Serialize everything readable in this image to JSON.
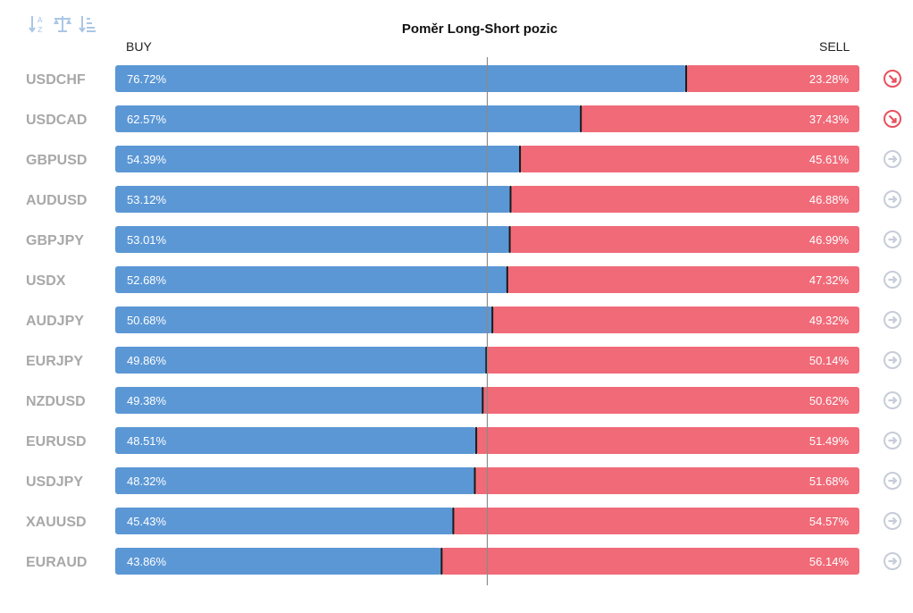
{
  "title": "Poměr Long-Short pozic",
  "headers": {
    "buy": "BUY",
    "sell": "SELL"
  },
  "toolbar": [
    {
      "name": "sort-alpha-icon"
    },
    {
      "name": "balance-scale-icon"
    },
    {
      "name": "sort-amount-icon"
    }
  ],
  "colors": {
    "buy": "#5b97d5",
    "sell": "#f06a78",
    "down_arrow": "#e8505e",
    "neutral_arrow": "#c7ccd8"
  },
  "chart_data": {
    "type": "bar",
    "stacked": true,
    "orientation": "horizontal",
    "categories": [
      "USDCHF",
      "USDCAD",
      "GBPUSD",
      "AUDUSD",
      "GBPJPY",
      "USDX",
      "AUDJPY",
      "EURJPY",
      "NZDUSD",
      "EURUSD",
      "USDJPY",
      "XAUUSD",
      "EURAUD"
    ],
    "series": [
      {
        "name": "BUY",
        "values": [
          76.72,
          62.57,
          54.39,
          53.12,
          53.01,
          52.68,
          50.68,
          49.86,
          49.38,
          48.51,
          48.32,
          45.43,
          43.86
        ]
      },
      {
        "name": "SELL",
        "values": [
          23.28,
          37.43,
          45.61,
          46.88,
          46.99,
          47.32,
          49.32,
          50.14,
          50.62,
          51.49,
          51.68,
          54.57,
          56.14
        ]
      }
    ],
    "labels_buy": [
      "76.72%",
      "62.57%",
      "54.39%",
      "53.12%",
      "53.01%",
      "52.68%",
      "50.68%",
      "49.86%",
      "49.38%",
      "48.51%",
      "48.32%",
      "45.43%",
      "43.86%"
    ],
    "labels_sell": [
      "23.28%",
      "37.43%",
      "45.61%",
      "46.88%",
      "46.99%",
      "47.32%",
      "49.32%",
      "50.14%",
      "50.62%",
      "51.49%",
      "51.68%",
      "54.57%",
      "56.14%"
    ],
    "trend_icons": [
      "down-right-arrow-icon",
      "down-right-arrow-icon",
      "right-arrow-icon",
      "right-arrow-icon",
      "right-arrow-icon",
      "right-arrow-icon",
      "right-arrow-icon",
      "right-arrow-icon",
      "right-arrow-icon",
      "right-arrow-icon",
      "right-arrow-icon",
      "right-arrow-icon",
      "right-arrow-icon"
    ],
    "xlim": [
      0,
      100
    ],
    "reference_line": 50
  }
}
